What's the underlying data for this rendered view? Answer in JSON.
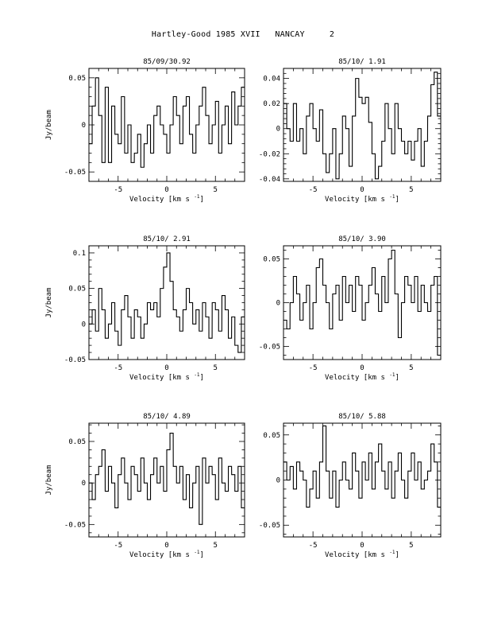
{
  "page_title": "Hartley-Good 1985 XVII   NANCAY     2",
  "chart_data": [
    {
      "type": "line",
      "title": "85/09/30.92",
      "xlabel": "Velocity [km s",
      "xlabel_exp": "-1",
      "xlabel_close": "]",
      "ylabel": "Jy/beam",
      "xlim": [
        -8,
        8
      ],
      "ylim": [
        -0.06,
        0.06
      ],
      "xticks": [
        -5,
        0,
        5
      ],
      "xtick_labels": [
        "-5",
        "0",
        "5"
      ],
      "yticks": [
        0.05,
        0,
        -0.05
      ],
      "ytick_labels": [
        "0.05",
        "0",
        "-0.05"
      ],
      "series": [
        {
          "x": [
            -8.0,
            -7.67,
            -7.33,
            -7.0,
            -6.67,
            -6.33,
            -6.0,
            -5.67,
            -5.33,
            -5.0,
            -4.67,
            -4.33,
            -4.0,
            -3.67,
            -3.33,
            -3.0,
            -2.67,
            -2.33,
            -2.0,
            -1.67,
            -1.33,
            -1.0,
            -0.67,
            -0.33,
            0.0,
            0.33,
            0.67,
            1.0,
            1.33,
            1.67,
            2.0,
            2.33,
            2.67,
            3.0,
            3.33,
            3.67,
            4.0,
            4.33,
            4.67,
            5.0,
            5.33,
            5.67,
            6.0,
            6.33,
            6.67,
            7.0,
            7.33,
            7.67
          ],
          "values": [
            -0.02,
            0.02,
            0.05,
            0.01,
            -0.04,
            0.04,
            -0.04,
            0.02,
            -0.01,
            -0.02,
            0.03,
            -0.03,
            0.0,
            -0.04,
            -0.03,
            -0.01,
            -0.045,
            -0.02,
            0.0,
            -0.03,
            0.01,
            0.02,
            0.0,
            -0.01,
            -0.03,
            0.0,
            0.03,
            0.01,
            -0.02,
            0.02,
            0.03,
            -0.01,
            -0.03,
            0.0,
            0.02,
            0.04,
            0.01,
            -0.02,
            0.0,
            0.025,
            -0.03,
            0.0,
            0.02,
            -0.02,
            0.035,
            0.0,
            0.02,
            0.04
          ]
        }
      ]
    },
    {
      "type": "line",
      "title": "85/10/ 1.91",
      "xlabel": "Velocity [km s",
      "xlabel_exp": "-1",
      "xlabel_close": "]",
      "ylabel": "",
      "xlim": [
        -8,
        8
      ],
      "ylim": [
        -0.042,
        0.048
      ],
      "xticks": [
        -5,
        0,
        5
      ],
      "xtick_labels": [
        "-5",
        "0",
        "5"
      ],
      "yticks": [
        0.04,
        0.02,
        0,
        -0.02,
        -0.04
      ],
      "ytick_labels": [
        "0.04",
        "0.02",
        "0",
        "-0.02",
        "-0.04"
      ],
      "series": [
        {
          "x": [
            -8.0,
            -7.67,
            -7.33,
            -7.0,
            -6.67,
            -6.33,
            -6.0,
            -5.67,
            -5.33,
            -5.0,
            -4.67,
            -4.33,
            -4.0,
            -3.67,
            -3.33,
            -3.0,
            -2.67,
            -2.33,
            -2.0,
            -1.67,
            -1.33,
            -1.0,
            -0.67,
            -0.33,
            0.0,
            0.33,
            0.67,
            1.0,
            1.33,
            1.67,
            2.0,
            2.33,
            2.67,
            3.0,
            3.33,
            3.67,
            4.0,
            4.33,
            4.67,
            5.0,
            5.33,
            5.67,
            6.0,
            6.33,
            6.67,
            7.0,
            7.33,
            7.67
          ],
          "values": [
            0.02,
            0.0,
            -0.01,
            0.02,
            -0.01,
            0.0,
            -0.02,
            0.01,
            0.02,
            0.0,
            -0.01,
            0.015,
            -0.02,
            -0.035,
            -0.02,
            0.0,
            -0.04,
            -0.02,
            0.01,
            0.0,
            -0.03,
            0.01,
            0.04,
            0.025,
            0.02,
            0.025,
            0.005,
            -0.02,
            -0.04,
            -0.03,
            -0.01,
            0.02,
            0.0,
            -0.02,
            0.02,
            0.0,
            -0.01,
            -0.02,
            -0.01,
            -0.025,
            -0.01,
            0.0,
            -0.03,
            -0.01,
            0.01,
            0.035,
            0.045,
            0.01
          ]
        }
      ]
    },
    {
      "type": "line",
      "title": "85/10/ 2.91",
      "xlabel": "Velocity [km s",
      "xlabel_exp": "-1",
      "xlabel_close": "]",
      "ylabel": "Jy/beam",
      "xlim": [
        -8,
        8
      ],
      "ylim": [
        -0.05,
        0.11
      ],
      "xticks": [
        -5,
        0,
        5
      ],
      "xtick_labels": [
        "-5",
        "0",
        "5"
      ],
      "yticks": [
        0.1,
        0.05,
        0,
        -0.05
      ],
      "ytick_labels": [
        "0.1",
        "0.05",
        "0",
        "-0.05"
      ],
      "series": [
        {
          "x": [
            -8.0,
            -7.67,
            -7.33,
            -7.0,
            -6.67,
            -6.33,
            -6.0,
            -5.67,
            -5.33,
            -5.0,
            -4.67,
            -4.33,
            -4.0,
            -3.67,
            -3.33,
            -3.0,
            -2.67,
            -2.33,
            -2.0,
            -1.67,
            -1.33,
            -1.0,
            -0.67,
            -0.33,
            0.0,
            0.33,
            0.67,
            1.0,
            1.33,
            1.67,
            2.0,
            2.33,
            2.67,
            3.0,
            3.33,
            3.67,
            4.0,
            4.33,
            4.67,
            5.0,
            5.33,
            5.67,
            6.0,
            6.33,
            6.67,
            7.0,
            7.33,
            7.67
          ],
          "values": [
            0.0,
            0.02,
            -0.01,
            0.05,
            0.02,
            -0.02,
            0.0,
            0.03,
            -0.01,
            -0.03,
            0.02,
            0.04,
            0.01,
            -0.02,
            0.02,
            0.01,
            -0.02,
            0.0,
            0.03,
            0.02,
            0.03,
            0.01,
            0.05,
            0.08,
            0.1,
            0.06,
            0.02,
            0.01,
            -0.01,
            0.02,
            0.05,
            0.03,
            0.0,
            0.02,
            -0.01,
            0.03,
            0.01,
            -0.02,
            0.03,
            0.02,
            -0.01,
            0.04,
            0.02,
            -0.02,
            0.01,
            -0.03,
            -0.04,
            0.01
          ]
        }
      ]
    },
    {
      "type": "line",
      "title": "85/10/ 3.90",
      "xlabel": "Velocity [km s",
      "xlabel_exp": "-1",
      "xlabel_close": "]",
      "ylabel": "",
      "xlim": [
        -8,
        8
      ],
      "ylim": [
        -0.065,
        0.065
      ],
      "xticks": [
        -5,
        0,
        5
      ],
      "xtick_labels": [
        "-5",
        "0",
        "5"
      ],
      "yticks": [
        0.05,
        0,
        -0.05
      ],
      "ytick_labels": [
        "0.05",
        "0",
        "-0.05"
      ],
      "series": [
        {
          "x": [
            -8.0,
            -7.67,
            -7.33,
            -7.0,
            -6.67,
            -6.33,
            -6.0,
            -5.67,
            -5.33,
            -5.0,
            -4.67,
            -4.33,
            -4.0,
            -3.67,
            -3.33,
            -3.0,
            -2.67,
            -2.33,
            -2.0,
            -1.67,
            -1.33,
            -1.0,
            -0.67,
            -0.33,
            0.0,
            0.33,
            0.67,
            1.0,
            1.33,
            1.67,
            2.0,
            2.33,
            2.67,
            3.0,
            3.33,
            3.67,
            4.0,
            4.33,
            4.67,
            5.0,
            5.33,
            5.67,
            6.0,
            6.33,
            6.67,
            7.0,
            7.33,
            7.67
          ],
          "values": [
            -0.02,
            -0.03,
            0.0,
            0.03,
            0.01,
            -0.02,
            0.0,
            0.02,
            -0.03,
            0.0,
            0.04,
            0.05,
            0.02,
            0.0,
            -0.03,
            0.01,
            0.02,
            -0.02,
            0.03,
            0.0,
            0.02,
            -0.01,
            0.03,
            0.02,
            -0.02,
            0.0,
            0.02,
            0.04,
            0.01,
            -0.01,
            0.03,
            0.0,
            0.05,
            0.06,
            0.01,
            -0.04,
            0.0,
            0.03,
            0.02,
            0.0,
            0.03,
            -0.01,
            0.02,
            0.0,
            -0.01,
            0.02,
            0.03,
            -0.06
          ]
        }
      ]
    },
    {
      "type": "line",
      "title": "85/10/ 4.89",
      "xlabel": "Velocity [km s",
      "xlabel_exp": "-1",
      "xlabel_close": "]",
      "ylabel": "Jy/beam",
      "xlim": [
        -8,
        8
      ],
      "ylim": [
        -0.065,
        0.072
      ],
      "xticks": [
        -5,
        0,
        5
      ],
      "xtick_labels": [
        "-5",
        "0",
        "5"
      ],
      "yticks": [
        0.05,
        0,
        -0.05
      ],
      "ytick_labels": [
        "0.05",
        "0",
        "-0.05"
      ],
      "series": [
        {
          "x": [
            -8.0,
            -7.67,
            -7.33,
            -7.0,
            -6.67,
            -6.33,
            -6.0,
            -5.67,
            -5.33,
            -5.0,
            -4.67,
            -4.33,
            -4.0,
            -3.67,
            -3.33,
            -3.0,
            -2.67,
            -2.33,
            -2.0,
            -1.67,
            -1.33,
            -1.0,
            -0.67,
            -0.33,
            0.0,
            0.33,
            0.67,
            1.0,
            1.33,
            1.67,
            2.0,
            2.33,
            2.67,
            3.0,
            3.33,
            3.67,
            4.0,
            4.33,
            4.67,
            5.0,
            5.33,
            5.67,
            6.0,
            6.33,
            6.67,
            7.0,
            7.33,
            7.67
          ],
          "values": [
            0.0,
            -0.02,
            0.01,
            0.02,
            0.04,
            -0.01,
            0.02,
            0.0,
            -0.03,
            0.01,
            0.03,
            0.0,
            -0.02,
            0.02,
            0.01,
            -0.01,
            0.03,
            0.0,
            -0.02,
            0.01,
            0.03,
            0.0,
            0.02,
            -0.01,
            0.04,
            0.06,
            0.02,
            0.0,
            0.02,
            -0.02,
            0.01,
            -0.03,
            0.0,
            0.02,
            -0.05,
            0.03,
            0.0,
            0.02,
            0.01,
            -0.02,
            0.03,
            0.0,
            -0.01,
            0.02,
            0.01,
            -0.01,
            0.02,
            -0.03
          ]
        }
      ]
    },
    {
      "type": "line",
      "title": "85/10/ 5.88",
      "xlabel": "Velocity [km s",
      "xlabel_exp": "-1",
      "xlabel_close": "]",
      "ylabel": "",
      "xlim": [
        -8,
        8
      ],
      "ylim": [
        -0.063,
        0.063
      ],
      "xticks": [
        -5,
        0,
        5
      ],
      "xtick_labels": [
        "-5",
        "0",
        "5"
      ],
      "yticks": [
        0.05,
        0,
        -0.05
      ],
      "ytick_labels": [
        "0.05",
        "0",
        "-0.05"
      ],
      "series": [
        {
          "x": [
            -8.0,
            -7.67,
            -7.33,
            -7.0,
            -6.67,
            -6.33,
            -6.0,
            -5.67,
            -5.33,
            -5.0,
            -4.67,
            -4.33,
            -4.0,
            -3.67,
            -3.33,
            -3.0,
            -2.67,
            -2.33,
            -2.0,
            -1.67,
            -1.33,
            -1.0,
            -0.67,
            -0.33,
            0.0,
            0.33,
            0.67,
            1.0,
            1.33,
            1.67,
            2.0,
            2.33,
            2.67,
            3.0,
            3.33,
            3.67,
            4.0,
            4.33,
            4.67,
            5.0,
            5.33,
            5.67,
            6.0,
            6.33,
            6.67,
            7.0,
            7.33,
            7.67
          ],
          "values": [
            0.02,
            0.0,
            0.015,
            -0.01,
            0.02,
            0.01,
            0.0,
            -0.03,
            -0.01,
            0.01,
            -0.02,
            0.02,
            0.06,
            0.01,
            -0.02,
            0.01,
            -0.03,
            0.0,
            0.02,
            0.0,
            -0.01,
            0.03,
            0.01,
            -0.02,
            0.02,
            0.0,
            0.03,
            -0.01,
            0.02,
            0.04,
            0.01,
            -0.01,
            0.02,
            -0.02,
            0.01,
            0.03,
            0.0,
            -0.02,
            0.01,
            0.03,
            0.0,
            0.02,
            -0.01,
            0.0,
            0.01,
            0.04,
            0.02,
            -0.03
          ]
        }
      ]
    }
  ]
}
